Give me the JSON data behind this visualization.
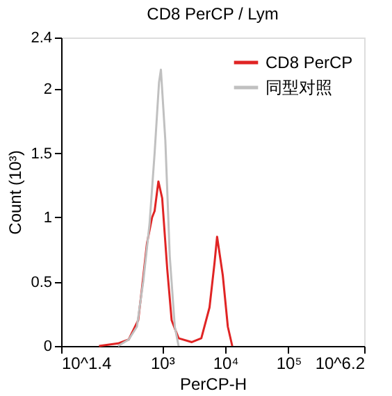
{
  "chart_data": {
    "type": "line",
    "title": "CD8 PerCP / Lym",
    "xlabel": "PerCP-H",
    "ylabel": "Count (10³)",
    "log": "x",
    "xlim": [
      25.1189,
      1584893
    ],
    "ylim": [
      0,
      2.4
    ],
    "xticks": [
      {
        "value": 25.1189,
        "label": "10^1.4"
      },
      {
        "value": 1000,
        "label": "10³"
      },
      {
        "value": 10000,
        "label": "10⁴"
      },
      {
        "value": 100000,
        "label": "10⁵"
      },
      {
        "value": 1584893,
        "label": "10^6.2"
      }
    ],
    "yticks": [
      0,
      0.5,
      1,
      1.5,
      2,
      2.4
    ],
    "grid": false,
    "legend": "top right",
    "marker": "none",
    "line_style": "solid",
    "series": [
      {
        "name": "CD8 PerCP",
        "color": "#e02424",
        "x": [
          100,
          200,
          295,
          417,
          479,
          575,
          692,
          759,
          871,
          1000,
          1202,
          1413,
          1820,
          2951,
          4169,
          5623,
          6761,
          7413,
          9120,
          10965,
          12882
        ],
        "values": [
          0,
          0.02,
          0.05,
          0.2,
          0.45,
          0.8,
          1.0,
          1.05,
          1.28,
          1.15,
          0.6,
          0.2,
          0.06,
          0.03,
          0.06,
          0.3,
          0.65,
          0.85,
          0.55,
          0.15,
          0
        ]
      },
      {
        "name": "同型对照",
        "color": "#c0c0c0",
        "x": [
          200,
          295,
          398,
          501,
          631,
          759,
          891,
          955,
          1122,
          1318,
          1585,
          1820
        ],
        "values": [
          0,
          0.05,
          0.15,
          0.5,
          0.95,
          1.5,
          2.05,
          2.15,
          1.6,
          0.7,
          0.15,
          0
        ]
      }
    ]
  }
}
